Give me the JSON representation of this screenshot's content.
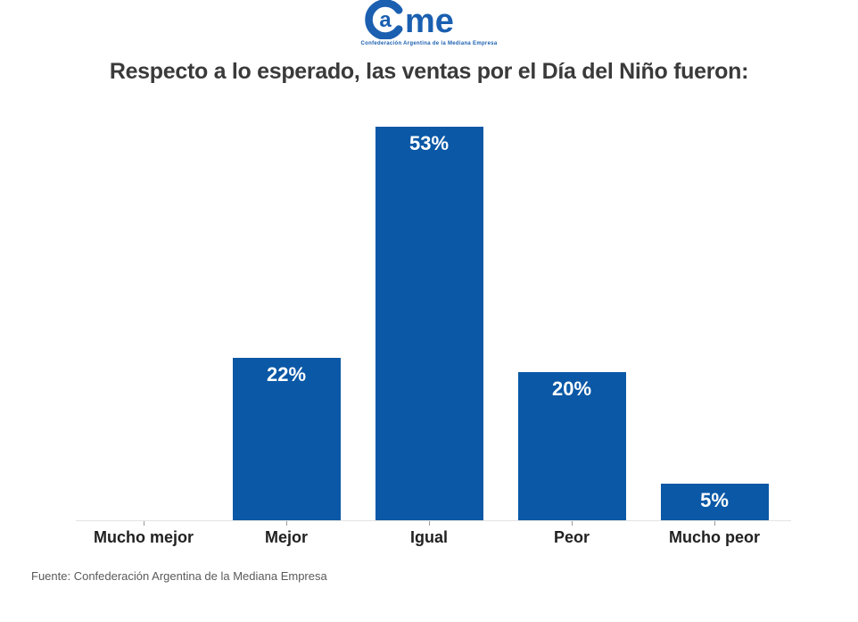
{
  "logo": {
    "name": "CAME",
    "letter_a": "a",
    "letters_me": "me",
    "tagline": "Confederación Argentina de la Mediana Empresa",
    "color": "#1a5fb0"
  },
  "chart_data": {
    "type": "bar",
    "title": "Respecto a lo esperado, las ventas por el Día del Niño fueron:",
    "categories": [
      "Mucho mejor",
      "Mejor",
      "Igual",
      "Peor",
      "Mucho peor"
    ],
    "values": [
      0,
      22,
      53,
      20,
      5
    ],
    "value_labels": [
      "",
      "22%",
      "53%",
      "20%",
      "5%"
    ],
    "bar_color": "#0a58a6",
    "value_label_color": "#ffffff",
    "xlabel": "",
    "ylabel": "",
    "ylim": [
      0,
      56
    ],
    "grid": false,
    "legend": "none"
  },
  "footer": {
    "source": "Fuente: Confederación Argentina de la Mediana Empresa"
  }
}
